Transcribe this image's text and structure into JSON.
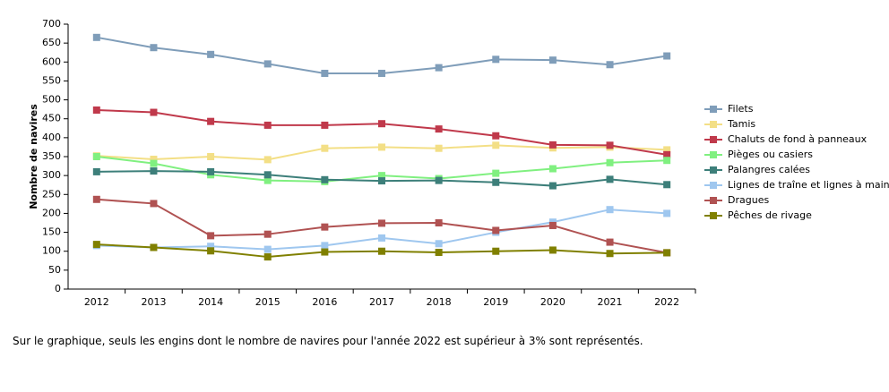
{
  "chart_data": {
    "type": "line",
    "y_label": "Nombre de navires",
    "categories": [
      "2012",
      "2013",
      "2014",
      "2015",
      "2016",
      "2017",
      "2018",
      "2019",
      "2020",
      "2021",
      "2022"
    ],
    "series": [
      {
        "name": "Filets",
        "color": "#7f9db9",
        "values": [
          665,
          638,
          620,
          595,
          570,
          570,
          585,
          607,
          605,
          593,
          616
        ]
      },
      {
        "name": "Tamis",
        "color": "#f3df86",
        "values": [
          352,
          343,
          350,
          342,
          372,
          375,
          372,
          380,
          373,
          375,
          368
        ]
      },
      {
        "name": "Chaluts de fond à panneaux",
        "color": "#c0394b",
        "values": [
          473,
          467,
          443,
          433,
          433,
          437,
          423,
          405,
          381,
          380,
          355
        ]
      },
      {
        "name": "Pièges ou casiers",
        "color": "#80f080",
        "values": [
          350,
          332,
          302,
          287,
          284,
          300,
          292,
          306,
          318,
          334,
          340
        ]
      },
      {
        "name": "Palangres calées",
        "color": "#3d7f7a",
        "values": [
          310,
          312,
          310,
          302,
          289,
          286,
          287,
          282,
          273,
          290,
          276
        ]
      },
      {
        "name": "Lignes de traîne et lignes à main",
        "color": "#9fc7ef",
        "values": [
          115,
          110,
          113,
          105,
          115,
          135,
          120,
          150,
          177,
          210,
          200
        ]
      },
      {
        "name": "Dragues",
        "color": "#b05252",
        "values": [
          237,
          226,
          141,
          145,
          164,
          174,
          175,
          155,
          168,
          124,
          96
        ]
      },
      {
        "name": "Pêches de rivage",
        "color": "#808000",
        "values": [
          118,
          110,
          101,
          85,
          98,
          100,
          97,
          100,
          103,
          94,
          96
        ]
      }
    ],
    "ylim": [
      0,
      700
    ],
    "yticks": [
      0,
      50,
      100,
      150,
      200,
      250,
      300,
      350,
      400,
      450,
      500,
      550,
      600,
      650,
      700
    ],
    "legend": "right",
    "footnote": "Sur le graphique, seuls les engins dont le nombre de navires pour l'année 2022 est supérieur à 3% sont représentés."
  }
}
